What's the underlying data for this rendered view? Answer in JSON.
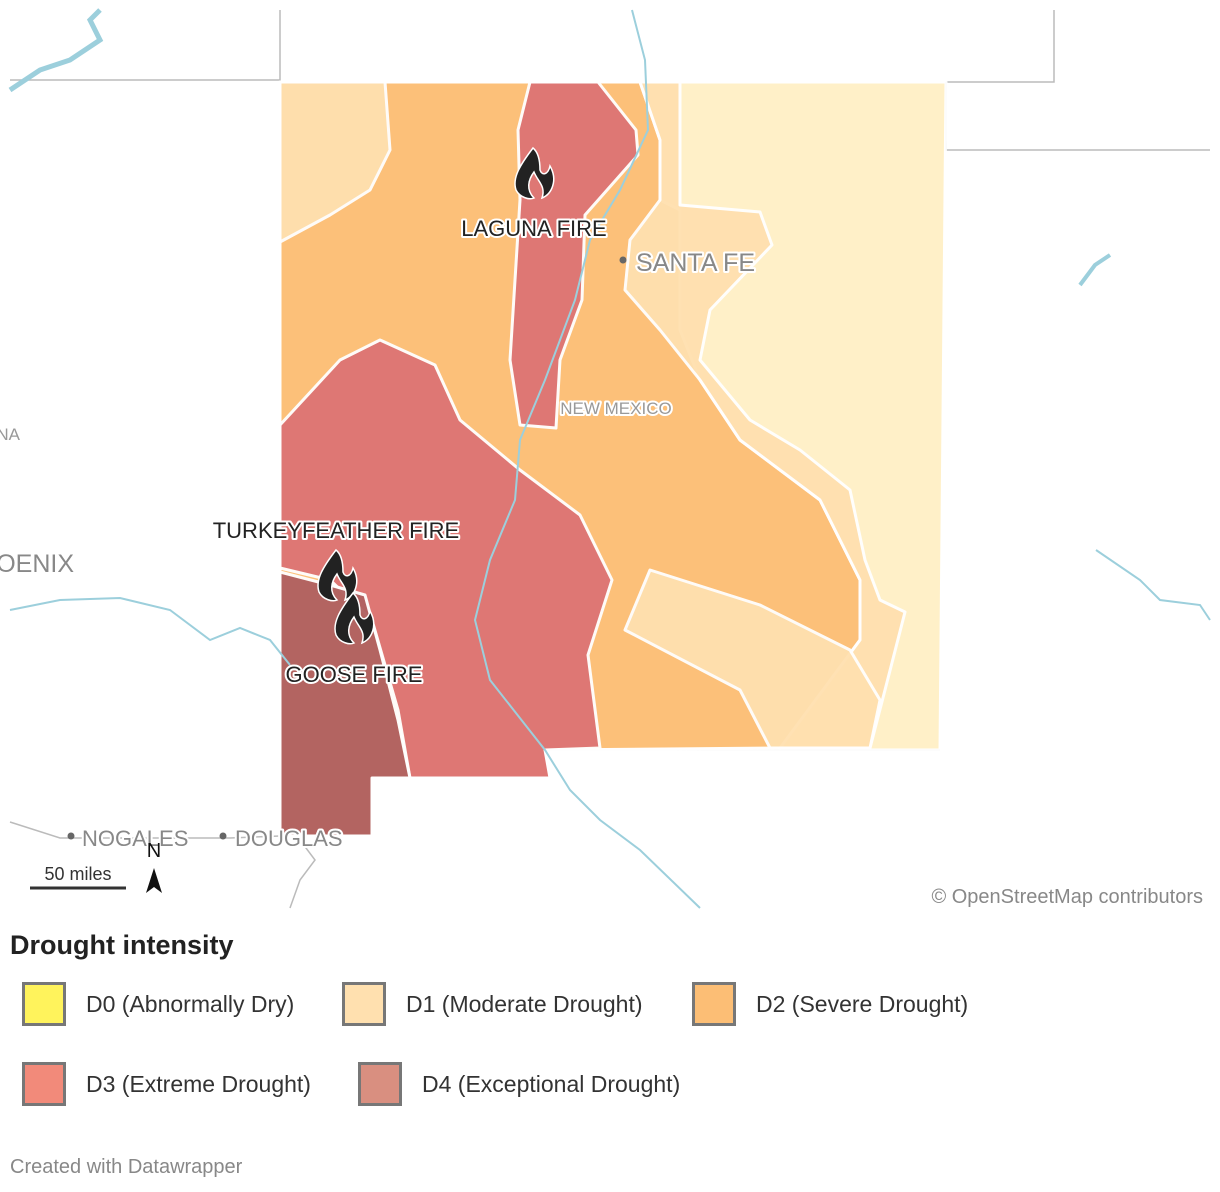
{
  "map": {
    "places": [
      "LAGUNA FIRE",
      "SANTA FE",
      "NEW MEXICO",
      "TURKEYFEATHER FIRE",
      "GOOSE FIRE",
      "PHOENIX",
      "ARIZONA",
      "NOGALES",
      "DOUGLAS"
    ],
    "north": "N",
    "scale": "50 miles",
    "attribution": "© OpenStreetMap contributors"
  },
  "legend": {
    "title": "Drought intensity",
    "items": [
      {
        "label": "D0 (Abnormally Dry)",
        "color": "#fff35c"
      },
      {
        "label": "D1 (Moderate Drought)",
        "color": "#ffe0af"
      },
      {
        "label": "D2 (Severe Drought)",
        "color": "#fcbe75"
      },
      {
        "label": "D3 (Extreme Drought)",
        "color": "#f28a7a"
      },
      {
        "label": "D4 (Exceptional Drought)",
        "color": "#d98f80"
      }
    ]
  },
  "footer": "Created with Datawrapper"
}
